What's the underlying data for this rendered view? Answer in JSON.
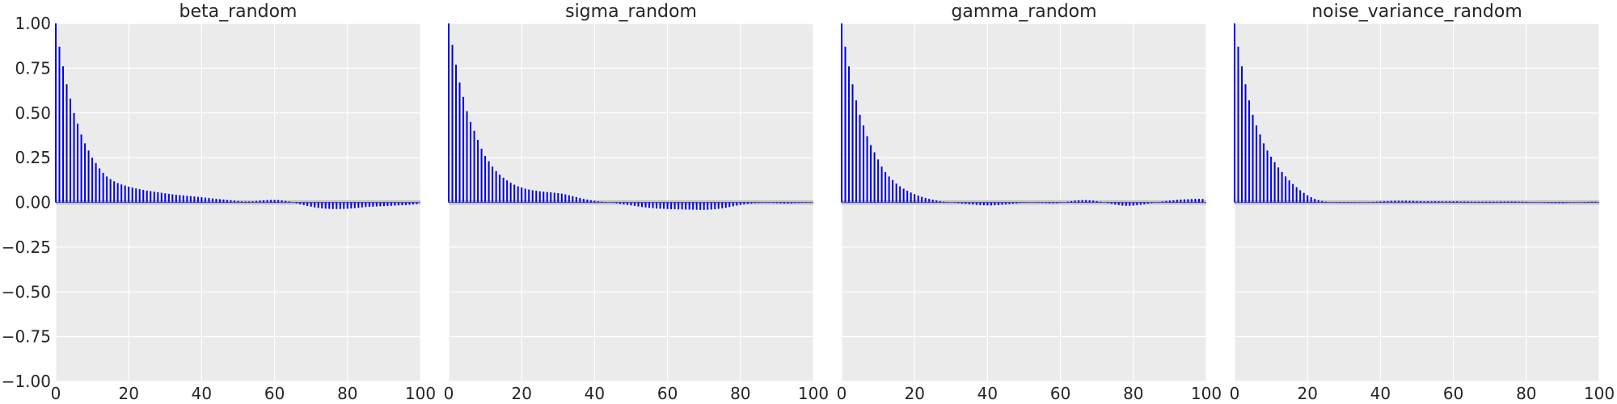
{
  "colors": {
    "plot_background": "#ebebeb",
    "grid": "#ffffff",
    "bar": "#0000ee",
    "confidence_band": "#bfbfbf",
    "text": "#262626"
  },
  "chart_data": [
    {
      "type": "bar",
      "title": "beta_random",
      "xlabel": "",
      "ylabel": "",
      "xlim": [
        0,
        100
      ],
      "ylim": [
        -1,
        1
      ],
      "xticks": [
        "0",
        "20",
        "40",
        "60",
        "80",
        "100"
      ],
      "yticks": [
        "1.00",
        "0.75",
        "0.50",
        "0.25",
        "0.00",
        "−0.25",
        "−0.50",
        "−0.75",
        "−1.00"
      ],
      "y_tick_labels_shown": true,
      "grid": true,
      "band": [
        -0.012,
        0.012
      ],
      "x": [
        0,
        1,
        2,
        3,
        4,
        5,
        6,
        7,
        8,
        9,
        10,
        11,
        12,
        13,
        14,
        15,
        16,
        17,
        18,
        19,
        20,
        21,
        22,
        23,
        24,
        25,
        26,
        27,
        28,
        29,
        30,
        31,
        32,
        33,
        34,
        35,
        36,
        37,
        38,
        39,
        40,
        41,
        42,
        43,
        44,
        45,
        46,
        47,
        48,
        49,
        50,
        51,
        52,
        53,
        54,
        55,
        56,
        57,
        58,
        59,
        60,
        61,
        62,
        63,
        64,
        65,
        66,
        67,
        68,
        69,
        70,
        71,
        72,
        73,
        74,
        75,
        76,
        77,
        78,
        79,
        80,
        81,
        82,
        83,
        84,
        85,
        86,
        87,
        88,
        89,
        90,
        91,
        92,
        93,
        94,
        95,
        96,
        97,
        98,
        99
      ],
      "values": [
        1.0,
        0.87,
        0.76,
        0.66,
        0.58,
        0.5,
        0.44,
        0.38,
        0.33,
        0.29,
        0.25,
        0.22,
        0.19,
        0.165,
        0.145,
        0.13,
        0.118,
        0.108,
        0.1,
        0.094,
        0.088,
        0.083,
        0.078,
        0.074,
        0.07,
        0.066,
        0.063,
        0.06,
        0.057,
        0.054,
        0.051,
        0.048,
        0.045,
        0.043,
        0.041,
        0.039,
        0.037,
        0.035,
        0.033,
        0.031,
        0.029,
        0.027,
        0.025,
        0.022,
        0.02,
        0.018,
        0.016,
        0.014,
        0.012,
        0.01,
        0.008,
        0.006,
        0.005,
        0.005,
        0.006,
        0.008,
        0.01,
        0.012,
        0.013,
        0.014,
        0.014,
        0.013,
        0.011,
        0.008,
        0.005,
        0.0,
        -0.005,
        -0.01,
        -0.015,
        -0.02,
        -0.024,
        -0.028,
        -0.031,
        -0.033,
        -0.035,
        -0.036,
        -0.037,
        -0.037,
        -0.037,
        -0.036,
        -0.035,
        -0.034,
        -0.032,
        -0.03,
        -0.028,
        -0.026,
        -0.025,
        -0.024,
        -0.023,
        -0.022,
        -0.021,
        -0.02,
        -0.019,
        -0.018,
        -0.017,
        -0.016,
        -0.015,
        -0.013,
        -0.011,
        -0.009
      ]
    },
    {
      "type": "bar",
      "title": "sigma_random",
      "xlabel": "",
      "ylabel": "",
      "xlim": [
        0,
        100
      ],
      "ylim": [
        -1,
        1
      ],
      "xticks": [
        "0",
        "20",
        "40",
        "60",
        "80",
        "100"
      ],
      "yticks": [
        "1.00",
        "0.75",
        "0.50",
        "0.25",
        "0.00",
        "−0.25",
        "−0.50",
        "−0.75",
        "−1.00"
      ],
      "y_tick_labels_shown": false,
      "grid": true,
      "band": [
        -0.012,
        0.012
      ],
      "x": [
        0,
        1,
        2,
        3,
        4,
        5,
        6,
        7,
        8,
        9,
        10,
        11,
        12,
        13,
        14,
        15,
        16,
        17,
        18,
        19,
        20,
        21,
        22,
        23,
        24,
        25,
        26,
        27,
        28,
        29,
        30,
        31,
        32,
        33,
        34,
        35,
        36,
        37,
        38,
        39,
        40,
        41,
        42,
        43,
        44,
        45,
        46,
        47,
        48,
        49,
        50,
        51,
        52,
        53,
        54,
        55,
        56,
        57,
        58,
        59,
        60,
        61,
        62,
        63,
        64,
        65,
        66,
        67,
        68,
        69,
        70,
        71,
        72,
        73,
        74,
        75,
        76,
        77,
        78,
        79,
        80,
        81,
        82,
        83,
        84,
        85,
        86,
        87,
        88,
        89,
        90,
        91,
        92,
        93,
        94,
        95,
        96,
        97,
        98,
        99
      ],
      "values": [
        1.0,
        0.88,
        0.77,
        0.67,
        0.59,
        0.51,
        0.45,
        0.4,
        0.35,
        0.3,
        0.26,
        0.23,
        0.2,
        0.175,
        0.155,
        0.138,
        0.123,
        0.11,
        0.099,
        0.09,
        0.083,
        0.077,
        0.072,
        0.068,
        0.065,
        0.062,
        0.06,
        0.058,
        0.056,
        0.054,
        0.052,
        0.049,
        0.045,
        0.04,
        0.035,
        0.03,
        0.025,
        0.02,
        0.016,
        0.012,
        0.009,
        0.006,
        0.004,
        0.002,
        0.0,
        -0.002,
        -0.005,
        -0.008,
        -0.011,
        -0.014,
        -0.017,
        -0.02,
        -0.023,
        -0.026,
        -0.028,
        -0.03,
        -0.032,
        -0.034,
        -0.035,
        -0.036,
        -0.037,
        -0.038,
        -0.038,
        -0.039,
        -0.039,
        -0.04,
        -0.04,
        -0.041,
        -0.041,
        -0.042,
        -0.042,
        -0.041,
        -0.04,
        -0.038,
        -0.036,
        -0.033,
        -0.03,
        -0.026,
        -0.022,
        -0.018,
        -0.014,
        -0.011,
        -0.008,
        -0.006,
        -0.004,
        -0.003,
        -0.002,
        -0.002,
        -0.002,
        -0.003,
        -0.004,
        -0.005,
        -0.006,
        -0.006,
        -0.005,
        -0.004,
        -0.003,
        -0.002,
        -0.002,
        -0.001
      ]
    },
    {
      "type": "bar",
      "title": "gamma_random",
      "xlabel": "",
      "ylabel": "",
      "xlim": [
        0,
        100
      ],
      "ylim": [
        -1,
        1
      ],
      "xticks": [
        "0",
        "20",
        "40",
        "60",
        "80",
        "100"
      ],
      "yticks": [
        "1.00",
        "0.75",
        "0.50",
        "0.25",
        "0.00",
        "−0.25",
        "−0.50",
        "−0.75",
        "−1.00"
      ],
      "y_tick_labels_shown": false,
      "grid": true,
      "band": [
        -0.012,
        0.012
      ],
      "x": [
        0,
        1,
        2,
        3,
        4,
        5,
        6,
        7,
        8,
        9,
        10,
        11,
        12,
        13,
        14,
        15,
        16,
        17,
        18,
        19,
        20,
        21,
        22,
        23,
        24,
        25,
        26,
        27,
        28,
        29,
        30,
        31,
        32,
        33,
        34,
        35,
        36,
        37,
        38,
        39,
        40,
        41,
        42,
        43,
        44,
        45,
        46,
        47,
        48,
        49,
        50,
        51,
        52,
        53,
        54,
        55,
        56,
        57,
        58,
        59,
        60,
        61,
        62,
        63,
        64,
        65,
        66,
        67,
        68,
        69,
        70,
        71,
        72,
        73,
        74,
        75,
        76,
        77,
        78,
        79,
        80,
        81,
        82,
        83,
        84,
        85,
        86,
        87,
        88,
        89,
        90,
        91,
        92,
        93,
        94,
        95,
        96,
        97,
        98,
        99
      ],
      "values": [
        1.0,
        0.87,
        0.76,
        0.66,
        0.57,
        0.49,
        0.43,
        0.37,
        0.32,
        0.28,
        0.24,
        0.2,
        0.17,
        0.145,
        0.125,
        0.105,
        0.09,
        0.077,
        0.065,
        0.055,
        0.046,
        0.038,
        0.031,
        0.025,
        0.02,
        0.015,
        0.011,
        0.007,
        0.004,
        0.002,
        0.0,
        -0.002,
        -0.004,
        -0.006,
        -0.008,
        -0.01,
        -0.012,
        -0.014,
        -0.015,
        -0.016,
        -0.017,
        -0.017,
        -0.016,
        -0.015,
        -0.013,
        -0.011,
        -0.009,
        -0.007,
        -0.005,
        -0.003,
        -0.002,
        -0.001,
        0.0,
        -0.001,
        -0.002,
        -0.003,
        -0.004,
        -0.005,
        -0.005,
        -0.004,
        -0.002,
        0.001,
        0.004,
        0.007,
        0.01,
        0.012,
        0.013,
        0.013,
        0.012,
        0.01,
        0.007,
        0.004,
        0.0,
        -0.004,
        -0.008,
        -0.012,
        -0.015,
        -0.018,
        -0.019,
        -0.019,
        -0.018,
        -0.016,
        -0.013,
        -0.01,
        -0.007,
        -0.004,
        -0.001,
        0.002,
        0.005,
        0.008,
        0.01,
        0.012,
        0.014,
        0.016,
        0.017,
        0.018,
        0.019,
        0.02,
        0.02,
        0.02
      ]
    },
    {
      "type": "bar",
      "title": "noise_variance_random",
      "xlabel": "",
      "ylabel": "",
      "xlim": [
        0,
        100
      ],
      "ylim": [
        -1,
        1
      ],
      "xticks": [
        "0",
        "20",
        "40",
        "60",
        "80",
        "100"
      ],
      "yticks": [
        "1.00",
        "0.75",
        "0.50",
        "0.25",
        "0.00",
        "−0.25",
        "−0.50",
        "−0.75",
        "−1.00"
      ],
      "y_tick_labels_shown": false,
      "grid": true,
      "band": [
        -0.012,
        0.012
      ],
      "x": [
        0,
        1,
        2,
        3,
        4,
        5,
        6,
        7,
        8,
        9,
        10,
        11,
        12,
        13,
        14,
        15,
        16,
        17,
        18,
        19,
        20,
        21,
        22,
        23,
        24,
        25,
        26,
        27,
        28,
        29,
        30,
        31,
        32,
        33,
        34,
        35,
        36,
        37,
        38,
        39,
        40,
        41,
        42,
        43,
        44,
        45,
        46,
        47,
        48,
        49,
        50,
        51,
        52,
        53,
        54,
        55,
        56,
        57,
        58,
        59,
        60,
        61,
        62,
        63,
        64,
        65,
        66,
        67,
        68,
        69,
        70,
        71,
        72,
        73,
        74,
        75,
        76,
        77,
        78,
        79,
        80,
        81,
        82,
        83,
        84,
        85,
        86,
        87,
        88,
        89,
        90,
        91,
        92,
        93,
        94,
        95,
        96,
        97,
        98,
        99
      ],
      "values": [
        1.0,
        0.87,
        0.76,
        0.66,
        0.57,
        0.49,
        0.43,
        0.38,
        0.33,
        0.29,
        0.255,
        0.225,
        0.195,
        0.17,
        0.145,
        0.123,
        0.103,
        0.085,
        0.068,
        0.053,
        0.04,
        0.029,
        0.02,
        0.013,
        0.008,
        0.004,
        0.001,
        -0.001,
        -0.002,
        -0.003,
        -0.003,
        -0.003,
        -0.002,
        -0.002,
        -0.001,
        0.0,
        0.001,
        0.002,
        0.003,
        0.004,
        0.005,
        0.006,
        0.007,
        0.008,
        0.009,
        0.009,
        0.009,
        0.009,
        0.008,
        0.008,
        0.007,
        0.007,
        0.006,
        0.006,
        0.006,
        0.006,
        0.006,
        0.006,
        0.006,
        0.006,
        0.006,
        0.006,
        0.005,
        0.005,
        0.005,
        0.004,
        0.004,
        0.004,
        0.004,
        0.004,
        0.004,
        0.004,
        0.004,
        0.005,
        0.005,
        0.005,
        0.005,
        0.005,
        0.004,
        0.004,
        0.003,
        0.002,
        0.001,
        0.0,
        -0.001,
        -0.002,
        -0.003,
        -0.004,
        -0.004,
        -0.004,
        -0.004,
        -0.003,
        -0.002,
        -0.001,
        0.0,
        0.001,
        0.002,
        0.003,
        0.004,
        0.004
      ]
    }
  ]
}
